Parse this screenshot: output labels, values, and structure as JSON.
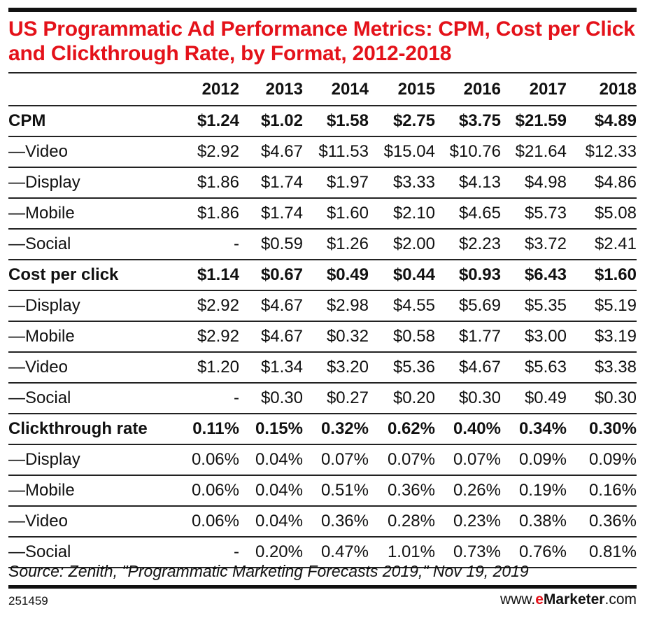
{
  "chart_data": {
    "type": "table",
    "title": "US Programmatic Ad Performance Metrics: CPM, Cost per Click and Clickthrough Rate, by Format, 2012-2018",
    "columns": [
      "2012",
      "2013",
      "2014",
      "2015",
      "2016",
      "2017",
      "2018"
    ],
    "rows": [
      {
        "label": "CPM",
        "bold": true,
        "values": [
          "$1.24",
          "$1.02",
          "$1.58",
          "$2.75",
          "$3.75",
          "$21.59",
          "$4.89"
        ]
      },
      {
        "label": "—Video",
        "values": [
          "$2.92",
          "$4.67",
          "$11.53",
          "$15.04",
          "$10.76",
          "$21.64",
          "$12.33"
        ]
      },
      {
        "label": "—Display",
        "values": [
          "$1.86",
          "$1.74",
          "$1.97",
          "$3.33",
          "$4.13",
          "$4.98",
          "$4.86"
        ]
      },
      {
        "label": "—Mobile",
        "values": [
          "$1.86",
          "$1.74",
          "$1.60",
          "$2.10",
          "$4.65",
          "$5.73",
          "$5.08"
        ]
      },
      {
        "label": "—Social",
        "values": [
          "-",
          "$0.59",
          "$1.26",
          "$2.00",
          "$2.23",
          "$3.72",
          "$2.41"
        ]
      },
      {
        "label": "Cost per click",
        "bold": true,
        "values": [
          "$1.14",
          "$0.67",
          "$0.49",
          "$0.44",
          "$0.93",
          "$6.43",
          "$1.60"
        ]
      },
      {
        "label": "—Display",
        "values": [
          "$2.92",
          "$4.67",
          "$2.98",
          "$4.55",
          "$5.69",
          "$5.35",
          "$5.19"
        ]
      },
      {
        "label": "—Mobile",
        "values": [
          "$2.92",
          "$4.67",
          "$0.32",
          "$0.58",
          "$1.77",
          "$3.00",
          "$3.19"
        ]
      },
      {
        "label": "—Video",
        "values": [
          "$1.20",
          "$1.34",
          "$3.20",
          "$5.36",
          "$4.67",
          "$5.63",
          "$3.38"
        ]
      },
      {
        "label": "—Social",
        "values": [
          "-",
          "$0.30",
          "$0.27",
          "$0.20",
          "$0.30",
          "$0.49",
          "$0.30"
        ]
      },
      {
        "label": "Clickthrough rate",
        "bold": true,
        "values": [
          "0.11%",
          "0.15%",
          "0.32%",
          "0.62%",
          "0.40%",
          "0.34%",
          "0.30%"
        ]
      },
      {
        "label": "—Display",
        "values": [
          "0.06%",
          "0.04%",
          "0.07%",
          "0.07%",
          "0.07%",
          "0.09%",
          "0.09%"
        ]
      },
      {
        "label": "—Mobile",
        "values": [
          "0.06%",
          "0.04%",
          "0.51%",
          "0.36%",
          "0.26%",
          "0.19%",
          "0.16%"
        ]
      },
      {
        "label": "—Video",
        "values": [
          "0.06%",
          "0.04%",
          "0.36%",
          "0.28%",
          "0.23%",
          "0.38%",
          "0.36%"
        ]
      },
      {
        "label": "—Social",
        "values": [
          "-",
          "0.20%",
          "0.47%",
          "1.01%",
          "0.73%",
          "0.76%",
          "0.81%"
        ]
      }
    ],
    "source": "Source: Zenith, \"Programmatic Marketing Forecasts 2019,\" Nov 19, 2019"
  },
  "footer": {
    "id": "251459",
    "brand_prefix": "www.",
    "brand_e": "e",
    "brand_name": "Marketer",
    "brand_suffix": ".com"
  },
  "colors": {
    "title": "#e4121a",
    "text": "#111111"
  }
}
